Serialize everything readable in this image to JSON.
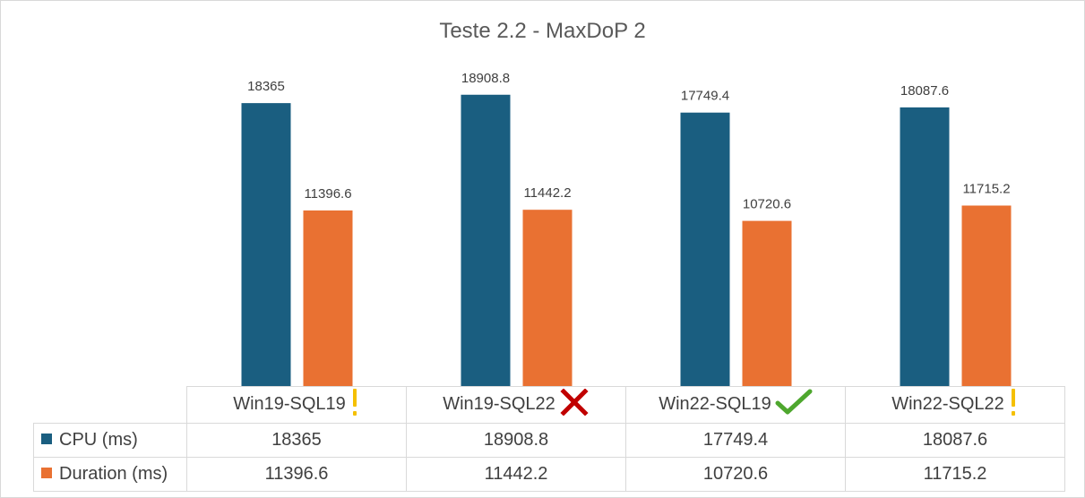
{
  "chart_data": {
    "type": "bar",
    "title": "Teste 2.2 - MaxDoP 2",
    "categories": [
      "Win19-SQL19",
      "Win19-SQL22",
      "Win22-SQL19",
      "Win22-SQL22"
    ],
    "category_status": [
      "warning-icon",
      "cross-icon",
      "check-icon",
      "warning-icon"
    ],
    "series": [
      {
        "name": "CPU (ms)",
        "color": "#1a5e80",
        "values": [
          18365,
          18908.8,
          17749.4,
          18087.6
        ]
      },
      {
        "name": "Duration (ms)",
        "color": "#e97132",
        "values": [
          11396.6,
          11442.2,
          10720.6,
          11715.2
        ]
      }
    ],
    "ylim": [
      0,
      25000
    ],
    "grid": false,
    "legend": "data-table",
    "xlabel": "",
    "ylabel": ""
  },
  "colors": {
    "warning": "#f5c000",
    "cross": "#c00000",
    "check": "#4ea72e"
  }
}
